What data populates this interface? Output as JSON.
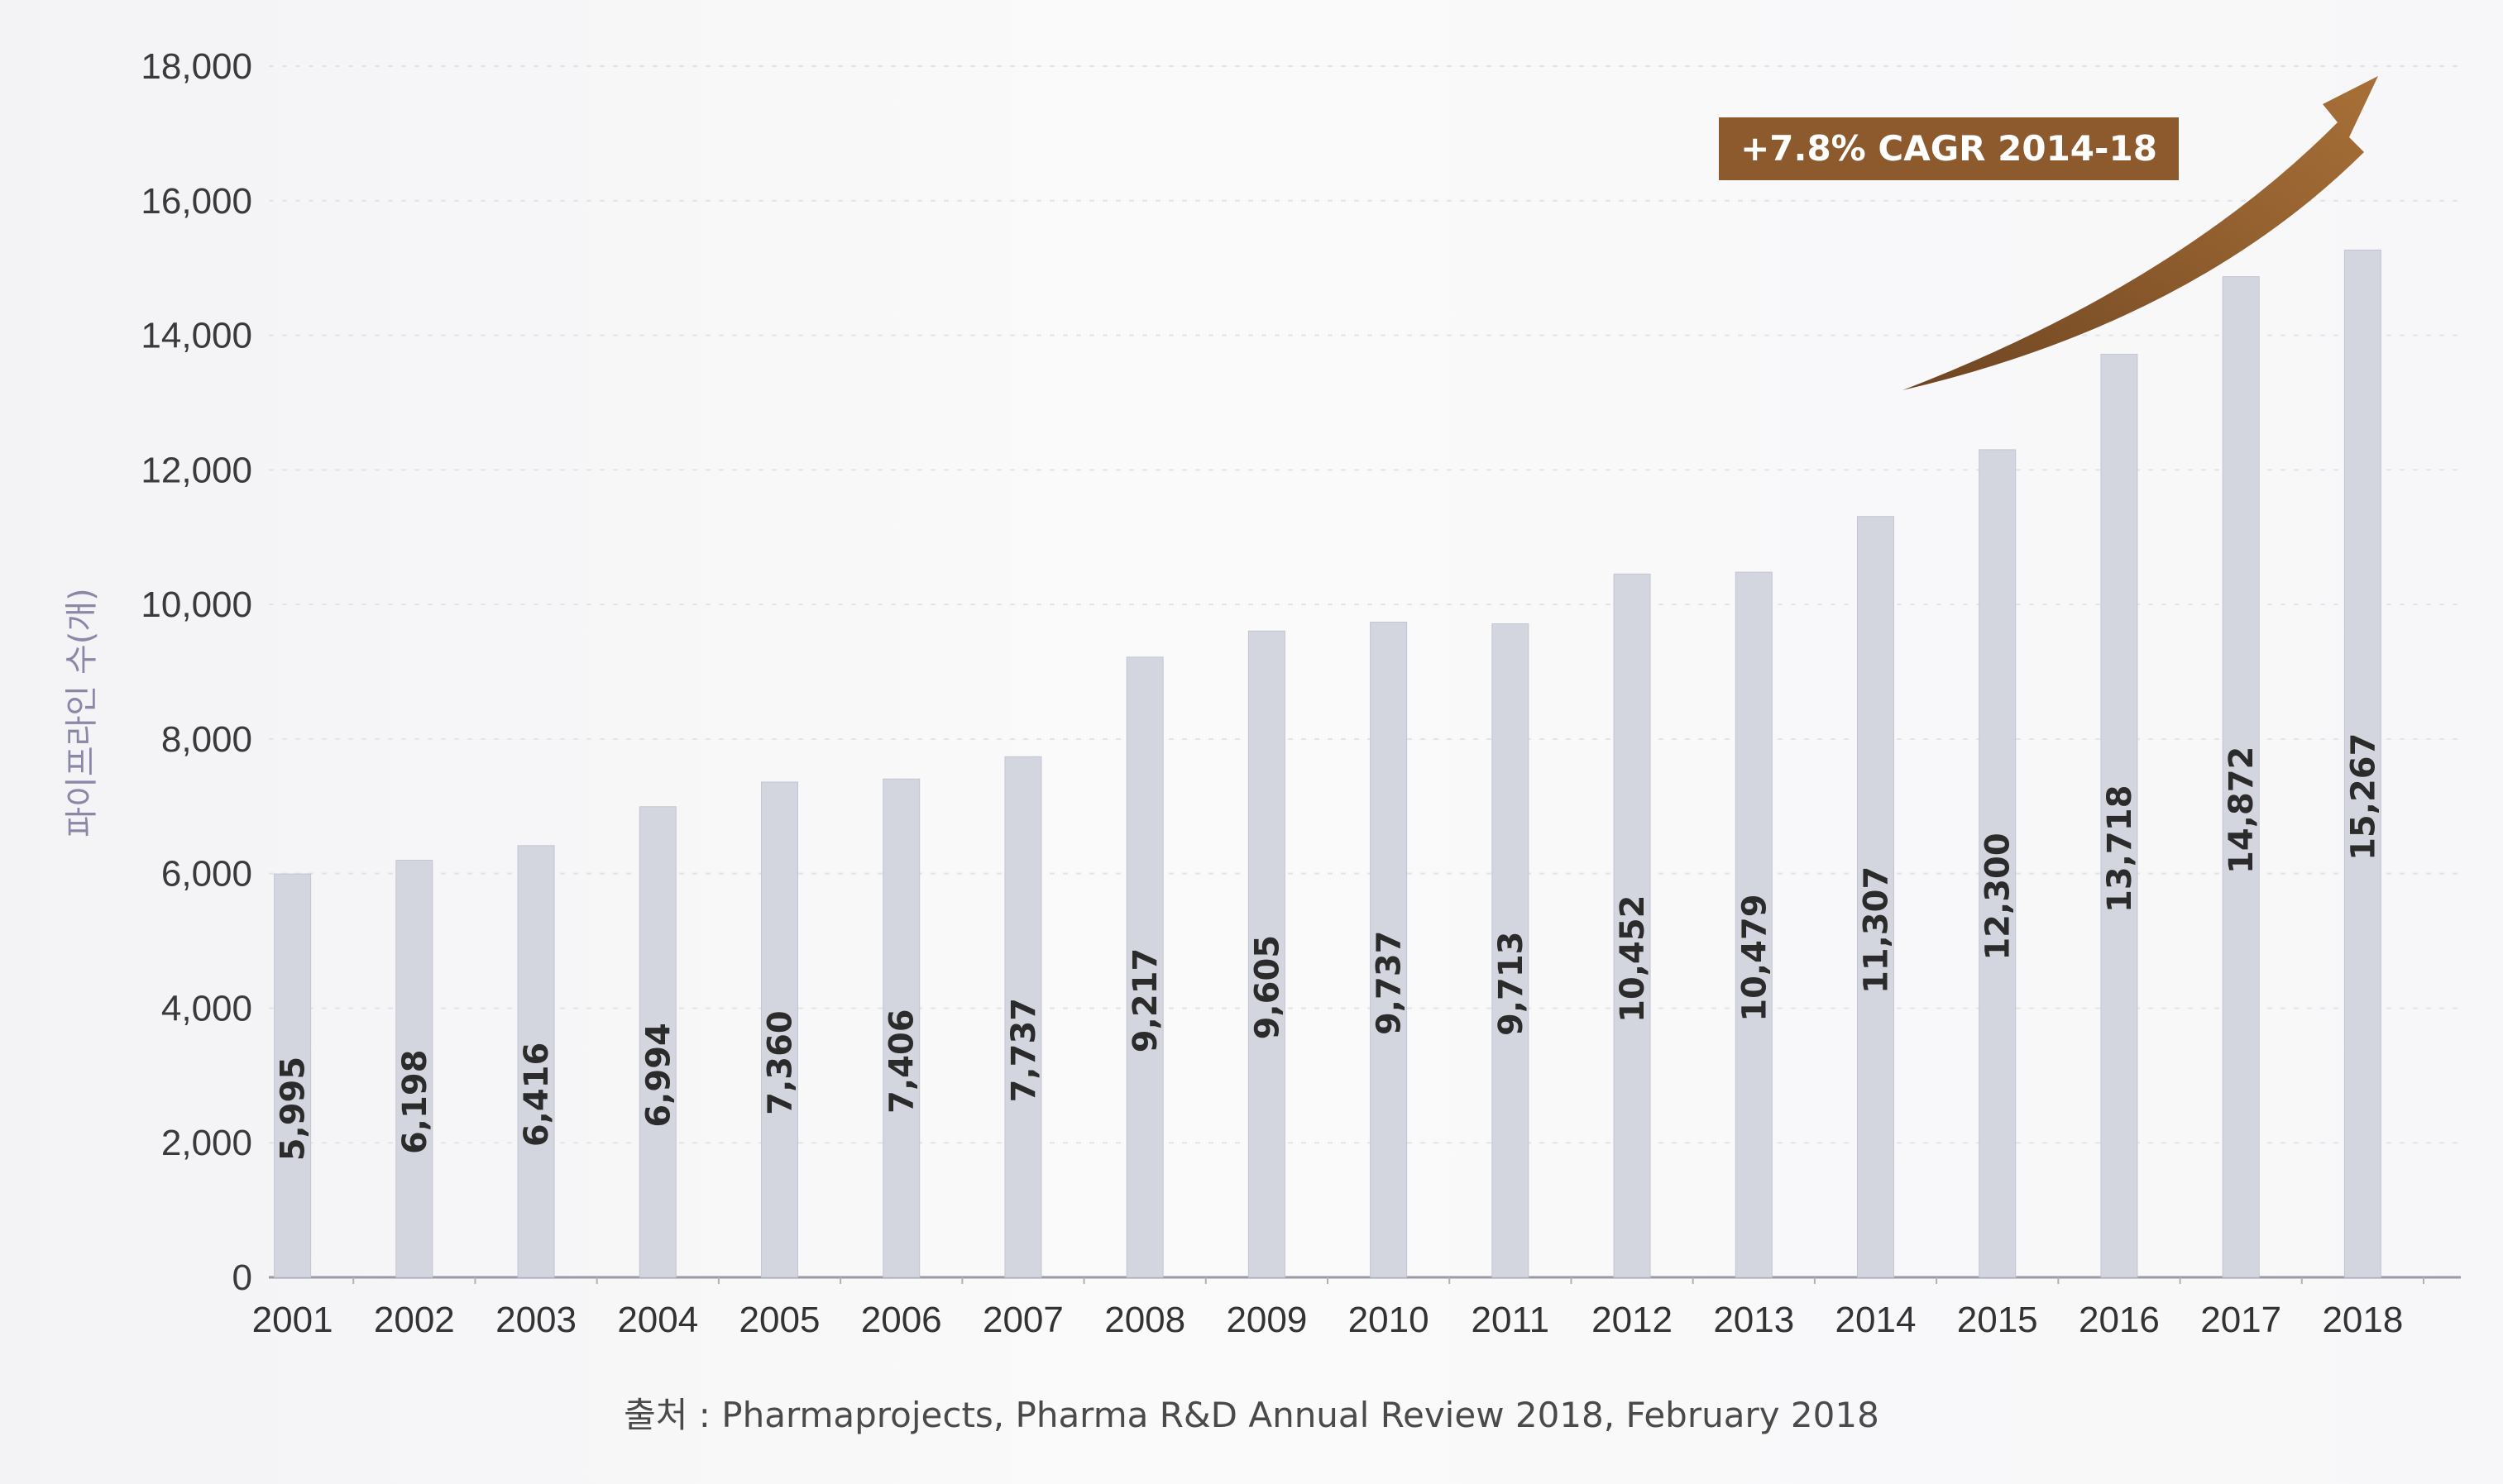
{
  "chart_data": {
    "type": "bar",
    "ylabel": "파이프라인 수(개)",
    "xlabel": "",
    "ylim": [
      0,
      18000
    ],
    "yticks": [
      0,
      2000,
      4000,
      6000,
      8000,
      10000,
      12000,
      14000,
      16000,
      18000
    ],
    "ytick_labels": [
      "0",
      "2,000",
      "4,000",
      "6,000",
      "8,000",
      "10,000",
      "12,000",
      "14,000",
      "16,000",
      "18,000"
    ],
    "categories": [
      "2001",
      "2002",
      "2003",
      "2004",
      "2005",
      "2006",
      "2007",
      "2008",
      "2009",
      "2010",
      "2011",
      "2012",
      "2013",
      "2014",
      "2015",
      "2016",
      "2017",
      "2018"
    ],
    "values": [
      5995,
      6198,
      6416,
      6994,
      7360,
      7406,
      7737,
      9217,
      9605,
      9737,
      9713,
      10452,
      10479,
      11307,
      12300,
      13718,
      14872,
      15267
    ],
    "value_labels": [
      "5,995",
      "6,198",
      "6,416",
      "6,994",
      "7,360",
      "7,406",
      "7,737",
      "9,217",
      "9,605",
      "9,737",
      "9,713",
      "10,452",
      "10,479",
      "11,307",
      "12,300",
      "13,718",
      "14,872",
      "15,267"
    ],
    "annotation": "+7.8% CAGR 2014-18",
    "grid": true,
    "bar_color": "#d3d5df",
    "annotation_color": "#8d5a2e"
  },
  "source_note": "출처 : Pharmaprojects, Pharma R&D Annual Review 2018, February 2018"
}
